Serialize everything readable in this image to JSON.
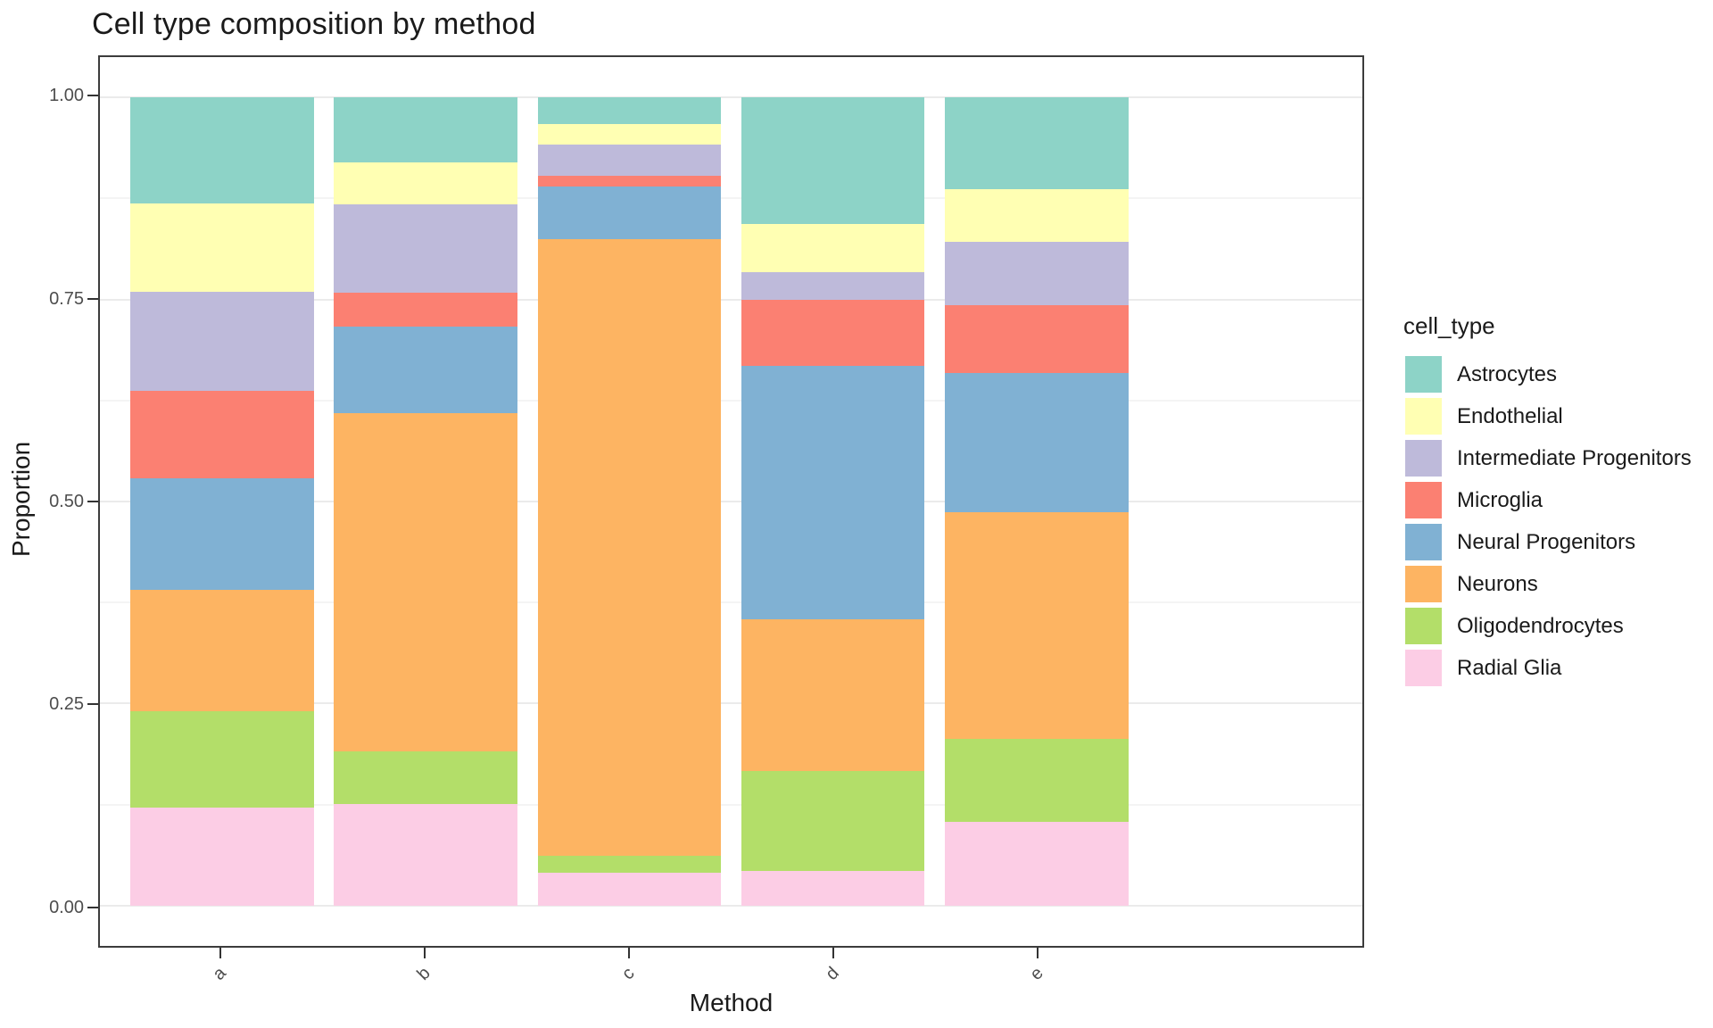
{
  "chart_data": {
    "type": "bar",
    "stacked": true,
    "title": "Cell type composition by method",
    "xlabel": "Method",
    "ylabel": "Proportion",
    "legend_title": "cell_type",
    "legend_position": "right",
    "categories": [
      "a",
      "b",
      "c",
      "d",
      "e"
    ],
    "ylim": [
      0,
      1
    ],
    "y_expansion": 0.05,
    "grid": true,
    "y_major_ticks": [
      {
        "value": 0.0,
        "label": "0.00"
      },
      {
        "value": 0.25,
        "label": "0.25"
      },
      {
        "value": 0.5,
        "label": "0.50"
      },
      {
        "value": 0.75,
        "label": "0.75"
      },
      {
        "value": 1.0,
        "label": "1.00"
      }
    ],
    "y_minor_ticks": [
      0.125,
      0.375,
      0.625,
      0.875
    ],
    "bar_width_fraction": 0.9,
    "stack_order": "top_to_bottom",
    "series": [
      {
        "name": "Astrocytes",
        "color": "#8DD3C7",
        "values": [
          0.131,
          0.08,
          0.033,
          0.156,
          0.114
        ]
      },
      {
        "name": "Endothelial",
        "color": "#FFFFB3",
        "values": [
          0.11,
          0.052,
          0.025,
          0.06,
          0.065
        ]
      },
      {
        "name": "Intermediate Progenitors",
        "color": "#BEBADA",
        "values": [
          0.122,
          0.11,
          0.039,
          0.034,
          0.078
        ]
      },
      {
        "name": "Microglia",
        "color": "#FB8072",
        "values": [
          0.108,
          0.041,
          0.013,
          0.082,
          0.084
        ]
      },
      {
        "name": "Neural Progenitors",
        "color": "#80B1D3",
        "values": [
          0.138,
          0.108,
          0.065,
          0.314,
          0.172
        ]
      },
      {
        "name": "Neurons",
        "color": "#FDB462",
        "values": [
          0.151,
          0.418,
          0.763,
          0.188,
          0.281
        ]
      },
      {
        "name": "Oligodendrocytes",
        "color": "#B3DE69",
        "values": [
          0.119,
          0.065,
          0.021,
          0.123,
          0.103
        ]
      },
      {
        "name": "Radial Glia",
        "color": "#FCCDE5",
        "values": [
          0.121,
          0.126,
          0.041,
          0.043,
          0.103
        ]
      }
    ]
  },
  "style_colors": {
    "panel_border": "#3C3C3C",
    "major_grid": "#EBEBEB",
    "minor_grid": "#F4F4F4",
    "axis_text": "#4D4D4D",
    "tick_mark": "#333333",
    "text": "#1A1A1A",
    "background": "#FFFFFF"
  }
}
